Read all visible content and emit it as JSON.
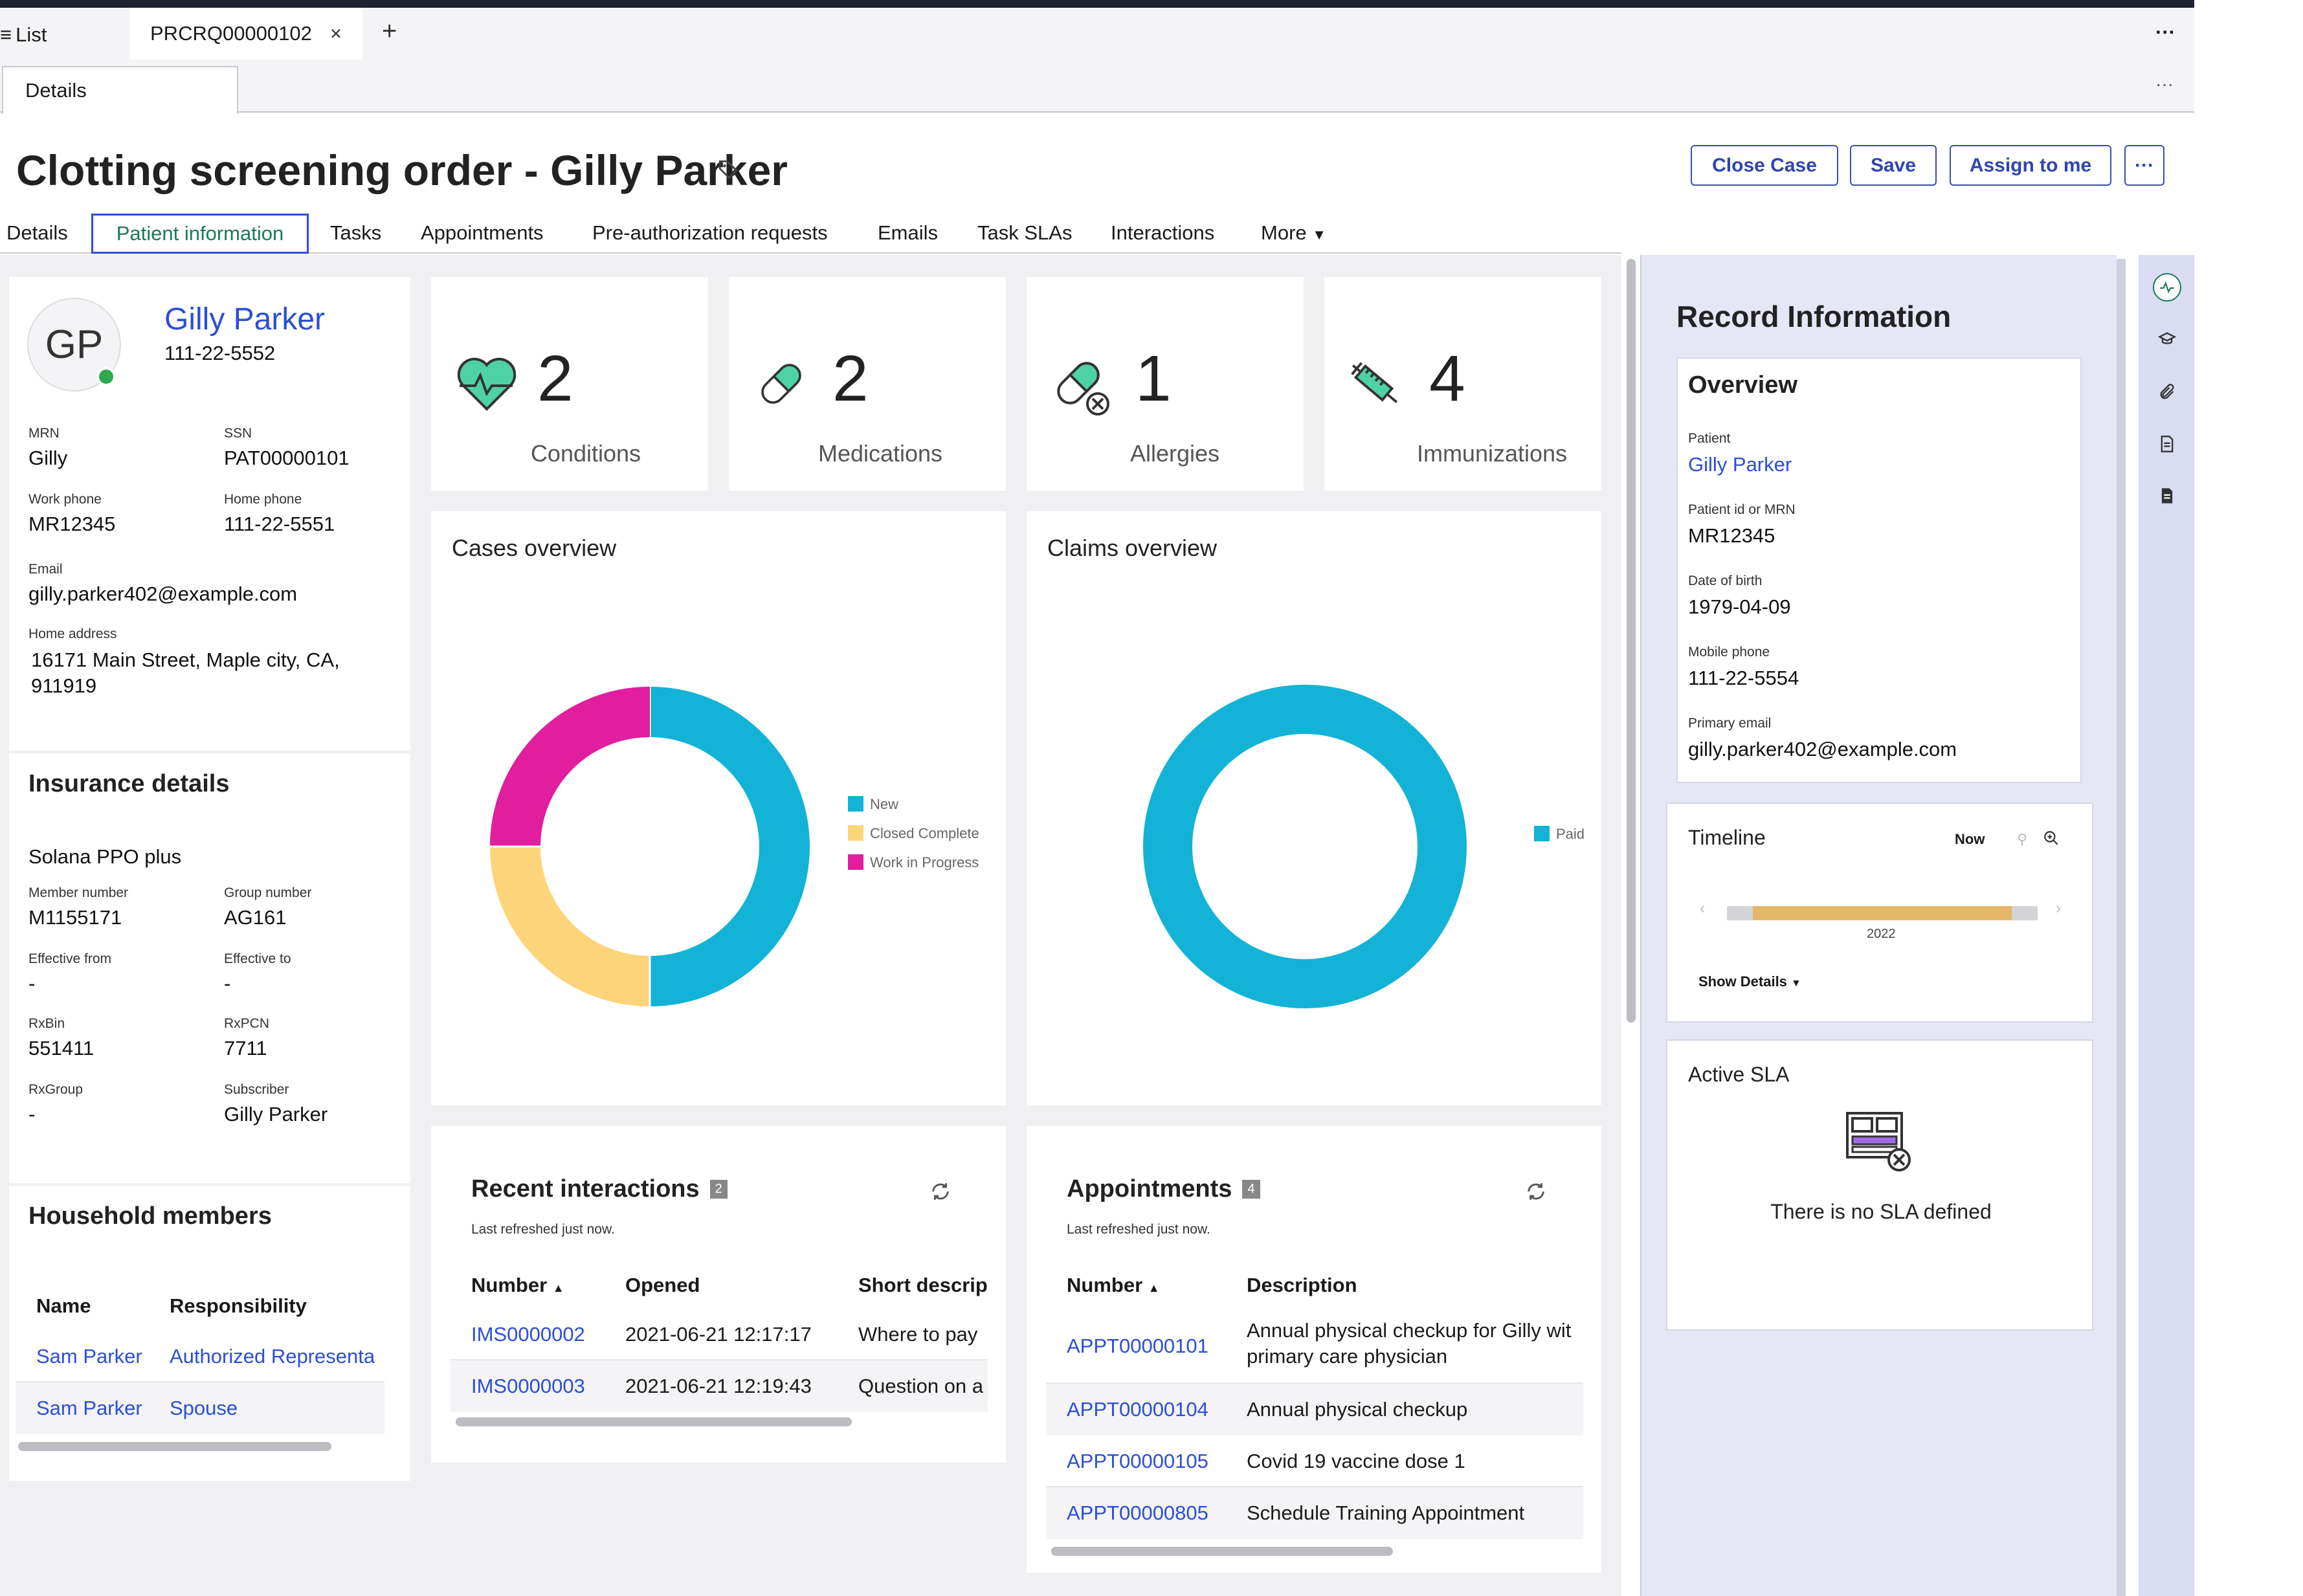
{
  "tabs_bar": {
    "list_label": "List",
    "record_tab": "PRCRQ00000102",
    "close_glyph": "×",
    "add_glyph": "+",
    "more_glyph": "···"
  },
  "subtabs": {
    "details": "Details",
    "more_glyph": "···"
  },
  "header": {
    "title": "Clotting screening order - Gilly Parker",
    "buttons": {
      "close_case": "Close Case",
      "save": "Save",
      "assign": "Assign to me",
      "more": "···"
    }
  },
  "nav_tabs": [
    "Details",
    "Patient information",
    "Tasks",
    "Appointments",
    "Pre-authorization requests",
    "Emails",
    "Task SLAs",
    "Interactions",
    "More"
  ],
  "patient": {
    "initials": "GP",
    "name": "Gilly Parker",
    "phone": "111-22-5552",
    "fields": [
      {
        "label": "MRN",
        "value": "Gilly"
      },
      {
        "label": "SSN",
        "value": "PAT00000101"
      },
      {
        "label": "Work phone",
        "value": "MR12345"
      },
      {
        "label": "Home phone",
        "value": "111-22-5551"
      }
    ],
    "email_label": "Email",
    "email": "gilly.parker402@example.com",
    "address_label": "Home address",
    "address": "16171 Main Street, Maple city, CA, 911919"
  },
  "insurance": {
    "heading": "Insurance details",
    "plan": "Solana PPO plus",
    "fields": [
      {
        "label": "Member number",
        "value": "M1155171"
      },
      {
        "label": "Group number",
        "value": "AG161"
      },
      {
        "label": "Effective from",
        "value": "-"
      },
      {
        "label": "Effective to",
        "value": "-"
      },
      {
        "label": "RxBin",
        "value": "551411"
      },
      {
        "label": "RxPCN",
        "value": "7711"
      },
      {
        "label": "RxGroup",
        "value": "-"
      },
      {
        "label": "Subscriber",
        "value": "Gilly Parker"
      }
    ]
  },
  "household": {
    "heading": "Household members",
    "columns": [
      "Name",
      "Responsibility"
    ],
    "rows": [
      {
        "name": "Sam Parker",
        "responsibility": "Authorized Representa"
      },
      {
        "name": "Sam Parker",
        "responsibility": "Spouse"
      }
    ]
  },
  "stats": [
    {
      "icon": "heart-icon",
      "count": "2",
      "label": "Conditions"
    },
    {
      "icon": "pill-icon",
      "count": "2",
      "label": "Medications"
    },
    {
      "icon": "allergy-icon",
      "count": "1",
      "label": "Allergies"
    },
    {
      "icon": "syringe-icon",
      "count": "4",
      "label": "Immunizations"
    }
  ],
  "cases_overview": {
    "title": "Cases overview"
  },
  "claims_overview": {
    "title": "Claims overview"
  },
  "chart_data": [
    {
      "type": "pie",
      "title": "Cases overview",
      "categories": [
        "New",
        "Closed Complete",
        "Work in Progress"
      ],
      "values": [
        2,
        1,
        1
      ],
      "colors": [
        "#12b3d6",
        "#fcd57a",
        "#e01e9e"
      ],
      "legend": "right"
    },
    {
      "type": "pie",
      "title": "Claims overview",
      "categories": [
        "Paid"
      ],
      "values": [
        1
      ],
      "colors": [
        "#12b3d6"
      ],
      "legend": "right"
    }
  ],
  "interactions": {
    "title": "Recent interactions",
    "count": "2",
    "refreshed": "Last refreshed just now.",
    "columns": [
      "Number",
      "Opened",
      "Short descript"
    ],
    "rows": [
      {
        "number": "IMS0000002",
        "opened": "2021-06-21 12:17:17",
        "desc": "Where to pay"
      },
      {
        "number": "IMS0000003",
        "opened": "2021-06-21 12:19:43",
        "desc": "Question on a"
      }
    ]
  },
  "appointments": {
    "title": "Appointments",
    "count": "4",
    "refreshed": "Last refreshed just now.",
    "columns": [
      "Number",
      "Description"
    ],
    "rows": [
      {
        "number": "APPT00000101",
        "desc": "Annual physical checkup for Gilly wit primary care physician"
      },
      {
        "number": "APPT00000104",
        "desc": "Annual physical checkup"
      },
      {
        "number": "APPT00000105",
        "desc": "Covid 19 vaccine dose 1"
      },
      {
        "number": "APPT00000805",
        "desc": "Schedule Training Appointment"
      }
    ]
  },
  "record_info": {
    "heading": "Record Information",
    "overview_heading": "Overview",
    "fields": [
      {
        "label": "Patient",
        "value": "Gilly Parker"
      },
      {
        "label": "Patient id or MRN",
        "value": "MR12345"
      },
      {
        "label": "Date of birth",
        "value": "1979-04-09"
      },
      {
        "label": "Mobile phone",
        "value": "111-22-5554"
      },
      {
        "label": "Primary email",
        "value": "gilly.parker402@example.com"
      }
    ]
  },
  "timeline": {
    "title": "Timeline",
    "now": "Now",
    "year": "2022",
    "show_details": "Show Details"
  },
  "active_sla": {
    "title": "Active SLA",
    "empty": "There is no SLA defined"
  },
  "colors": {
    "accent": "#2b4ed6",
    "nav_active": "#1a7a5a",
    "rail": "#d9dcf3",
    "side_bg": "#e8e9f6",
    "bar": "#e5b769"
  }
}
